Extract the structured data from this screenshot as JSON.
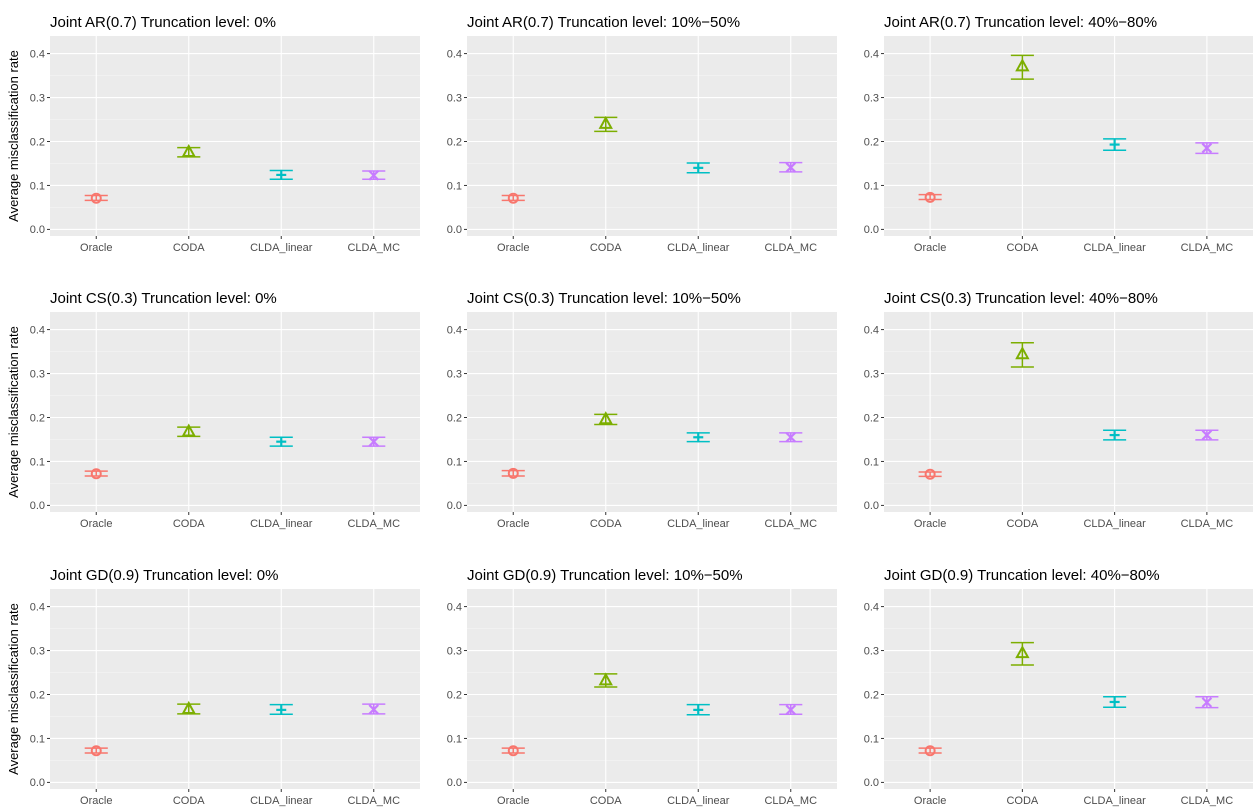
{
  "colors": {
    "panel_bg": "#EBEBEB",
    "grid_major": "#FFFFFF",
    "grid_minor": "#F5F5F5",
    "tick_text": "#4D4D4D",
    "Oracle": "#F8766D",
    "CODA": "#7CAE00",
    "CLDA_linear": "#00BFC4",
    "CLDA_MC": "#C77CFF"
  },
  "shapes": {
    "Oracle": "circle-open",
    "CODA": "triangle-open",
    "CLDA_linear": "plus",
    "CLDA_MC": "cross"
  },
  "chart_data": [
    {
      "type": "scatter",
      "title": "Joint AR(0.7) Truncation level: 0%",
      "xlabel": "",
      "ylabel": "Average misclassification rate",
      "categories": [
        "Oracle",
        "CODA",
        "CLDA_linear",
        "CLDA_MC"
      ],
      "ylim": [
        -0.015,
        0.44
      ],
      "yticks": [
        0.0,
        0.1,
        0.2,
        0.3,
        0.4
      ],
      "yticklabels": [
        "0.0",
        "0.1",
        "0.2",
        "0.3",
        "0.4"
      ],
      "values": [
        0.071,
        0.176,
        0.124,
        0.123
      ],
      "lower": [
        0.066,
        0.165,
        0.114,
        0.114
      ],
      "upper": [
        0.077,
        0.186,
        0.134,
        0.133
      ]
    },
    {
      "type": "scatter",
      "title": "Joint AR(0.7) Truncation level: 10%−50%",
      "xlabel": "",
      "ylabel": "",
      "categories": [
        "Oracle",
        "CODA",
        "CLDA_linear",
        "CLDA_MC"
      ],
      "ylim": [
        -0.015,
        0.44
      ],
      "yticks": [
        0.0,
        0.1,
        0.2,
        0.3,
        0.4
      ],
      "yticklabels": [
        "0.0",
        "0.1",
        "0.2",
        "0.3",
        "0.4"
      ],
      "values": [
        0.071,
        0.24,
        0.14,
        0.141
      ],
      "lower": [
        0.066,
        0.223,
        0.129,
        0.131
      ],
      "upper": [
        0.077,
        0.255,
        0.151,
        0.152
      ]
    },
    {
      "type": "scatter",
      "title": "Joint AR(0.7) Truncation level: 40%−80%",
      "xlabel": "",
      "ylabel": "",
      "categories": [
        "Oracle",
        "CODA",
        "CLDA_linear",
        "CLDA_MC"
      ],
      "ylim": [
        -0.015,
        0.44
      ],
      "yticks": [
        0.0,
        0.1,
        0.2,
        0.3,
        0.4
      ],
      "yticklabels": [
        "0.0",
        "0.1",
        "0.2",
        "0.3",
        "0.4"
      ],
      "values": [
        0.073,
        0.371,
        0.193,
        0.185
      ],
      "lower": [
        0.068,
        0.342,
        0.18,
        0.173
      ],
      "upper": [
        0.079,
        0.396,
        0.206,
        0.197
      ]
    },
    {
      "type": "scatter",
      "title": "Joint CS(0.3) Truncation level: 0%",
      "xlabel": "",
      "ylabel": "Average misclassification rate",
      "categories": [
        "Oracle",
        "CODA",
        "CLDA_linear",
        "CLDA_MC"
      ],
      "ylim": [
        -0.015,
        0.44
      ],
      "yticks": [
        0.0,
        0.1,
        0.2,
        0.3,
        0.4
      ],
      "yticklabels": [
        "0.0",
        "0.1",
        "0.2",
        "0.3",
        "0.4"
      ],
      "values": [
        0.072,
        0.168,
        0.145,
        0.145
      ],
      "lower": [
        0.067,
        0.157,
        0.135,
        0.135
      ],
      "upper": [
        0.078,
        0.178,
        0.155,
        0.155
      ]
    },
    {
      "type": "scatter",
      "title": "Joint CS(0.3) Truncation level: 10%−50%",
      "xlabel": "",
      "ylabel": "",
      "categories": [
        "Oracle",
        "CODA",
        "CLDA_linear",
        "CLDA_MC"
      ],
      "ylim": [
        -0.015,
        0.44
      ],
      "yticks": [
        0.0,
        0.1,
        0.2,
        0.3,
        0.4
      ],
      "yticklabels": [
        "0.0",
        "0.1",
        "0.2",
        "0.3",
        "0.4"
      ],
      "values": [
        0.073,
        0.196,
        0.155,
        0.155
      ],
      "lower": [
        0.067,
        0.184,
        0.145,
        0.145
      ],
      "upper": [
        0.079,
        0.207,
        0.165,
        0.165
      ]
    },
    {
      "type": "scatter",
      "title": "Joint CS(0.3) Truncation level: 40%−80%",
      "xlabel": "",
      "ylabel": "",
      "categories": [
        "Oracle",
        "CODA",
        "CLDA_linear",
        "CLDA_MC"
      ],
      "ylim": [
        -0.015,
        0.44
      ],
      "yticks": [
        0.0,
        0.1,
        0.2,
        0.3,
        0.4
      ],
      "yticklabels": [
        "0.0",
        "0.1",
        "0.2",
        "0.3",
        "0.4"
      ],
      "values": [
        0.071,
        0.344,
        0.16,
        0.16
      ],
      "lower": [
        0.066,
        0.315,
        0.149,
        0.149
      ],
      "upper": [
        0.076,
        0.37,
        0.171,
        0.171
      ]
    },
    {
      "type": "scatter",
      "title": "Joint GD(0.9) Truncation level: 0%",
      "xlabel": "",
      "ylabel": "Average misclassification rate",
      "categories": [
        "Oracle",
        "CODA",
        "CLDA_linear",
        "CLDA_MC"
      ],
      "ylim": [
        -0.015,
        0.44
      ],
      "yticks": [
        0.0,
        0.1,
        0.2,
        0.3,
        0.4
      ],
      "yticklabels": [
        "0.0",
        "0.1",
        "0.2",
        "0.3",
        "0.4"
      ],
      "values": [
        0.072,
        0.167,
        0.165,
        0.166
      ],
      "lower": [
        0.067,
        0.156,
        0.155,
        0.156
      ],
      "upper": [
        0.078,
        0.178,
        0.177,
        0.178
      ]
    },
    {
      "type": "scatter",
      "title": "Joint GD(0.9) Truncation level: 10%−50%",
      "xlabel": "",
      "ylabel": "",
      "categories": [
        "Oracle",
        "CODA",
        "CLDA_linear",
        "CLDA_MC"
      ],
      "ylim": [
        -0.015,
        0.44
      ],
      "yticks": [
        0.0,
        0.1,
        0.2,
        0.3,
        0.4
      ],
      "yticklabels": [
        "0.0",
        "0.1",
        "0.2",
        "0.3",
        "0.4"
      ],
      "values": [
        0.072,
        0.232,
        0.165,
        0.165
      ],
      "lower": [
        0.067,
        0.217,
        0.154,
        0.155
      ],
      "upper": [
        0.078,
        0.247,
        0.177,
        0.177
      ]
    },
    {
      "type": "scatter",
      "title": "Joint GD(0.9) Truncation level: 40%−80%",
      "xlabel": "",
      "ylabel": "",
      "categories": [
        "Oracle",
        "CODA",
        "CLDA_linear",
        "CLDA_MC"
      ],
      "ylim": [
        -0.015,
        0.44
      ],
      "yticks": [
        0.0,
        0.1,
        0.2,
        0.3,
        0.4
      ],
      "yticklabels": [
        "0.0",
        "0.1",
        "0.2",
        "0.3",
        "0.4"
      ],
      "values": [
        0.072,
        0.294,
        0.183,
        0.182
      ],
      "lower": [
        0.067,
        0.267,
        0.171,
        0.17
      ],
      "upper": [
        0.078,
        0.318,
        0.195,
        0.195
      ]
    }
  ]
}
